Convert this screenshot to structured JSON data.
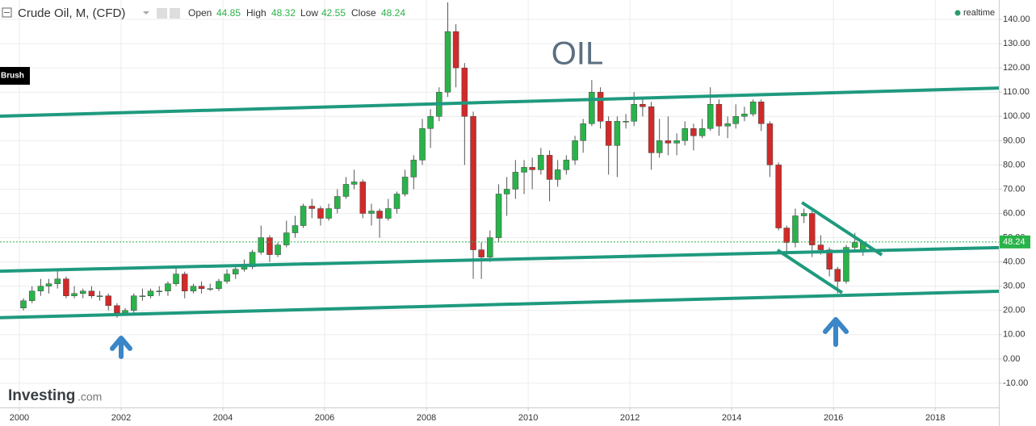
{
  "chart_data": {
    "type": "candlestick",
    "title": "Crude Oil, M, (CFD)",
    "watermark": "OIL",
    "tool_label": "Brush",
    "status": "realtime",
    "logo_main": "Investing",
    "logo_suffix": ".com",
    "ohlc_labels": [
      "Open",
      "High",
      "Low",
      "Close"
    ],
    "up_color": "#2ab34a",
    "down_color": "#d12a2a",
    "grid": true,
    "xlim": [
      1999.62,
      2019.25
    ],
    "xticks": [
      2000,
      2002,
      2004,
      2006,
      2008,
      2010,
      2012,
      2014,
      2016,
      2018
    ],
    "ylim": [
      -20,
      148
    ],
    "yticks": [
      {
        "value": -10,
        "label": "-10.00"
      },
      {
        "value": 0,
        "label": "0.00"
      },
      {
        "value": 10,
        "label": "10.00"
      },
      {
        "value": 20,
        "label": "20.00"
      },
      {
        "value": 30,
        "label": "30.00"
      },
      {
        "value": 40,
        "label": "40.00"
      },
      {
        "value": 50,
        "label": "50.00"
      },
      {
        "value": 60,
        "label": "60.00"
      },
      {
        "value": 70,
        "label": "70.00"
      },
      {
        "value": 80,
        "label": "80.00"
      },
      {
        "value": 90,
        "label": "90.00"
      },
      {
        "value": 100,
        "label": "100.00"
      },
      {
        "value": 110,
        "label": "110.00"
      },
      {
        "value": 120,
        "label": "120.00"
      },
      {
        "value": 130,
        "label": "130.00"
      },
      {
        "value": 140,
        "label": "140.00"
      }
    ],
    "x": [
      2000.08,
      2000.25,
      2000.42,
      2000.58,
      2000.75,
      2000.92,
      2001.08,
      2001.25,
      2001.42,
      2001.58,
      2001.75,
      2001.92,
      2002.08,
      2002.25,
      2002.42,
      2002.58,
      2002.75,
      2002.92,
      2003.08,
      2003.25,
      2003.42,
      2003.58,
      2003.75,
      2003.92,
      2004.08,
      2004.25,
      2004.42,
      2004.58,
      2004.75,
      2004.92,
      2005.08,
      2005.25,
      2005.42,
      2005.58,
      2005.75,
      2005.92,
      2006.08,
      2006.25,
      2006.42,
      2006.58,
      2006.75,
      2006.92,
      2007.08,
      2007.25,
      2007.42,
      2007.58,
      2007.75,
      2007.92,
      2008.08,
      2008.25,
      2008.42,
      2008.58,
      2008.75,
      2008.92,
      2009.08,
      2009.25,
      2009.42,
      2009.58,
      2009.75,
      2009.92,
      2010.08,
      2010.25,
      2010.42,
      2010.58,
      2010.75,
      2010.92,
      2011.08,
      2011.25,
      2011.42,
      2011.58,
      2011.75,
      2011.92,
      2012.08,
      2012.25,
      2012.42,
      2012.58,
      2012.75,
      2012.92,
      2013.08,
      2013.25,
      2013.42,
      2013.58,
      2013.75,
      2013.92,
      2014.08,
      2014.25,
      2014.42,
      2014.58,
      2014.75,
      2014.92,
      2015.08,
      2015.25,
      2015.42,
      2015.58,
      2015.75,
      2015.92,
      2016.08,
      2016.25,
      2016.42,
      2016.58
    ],
    "open": [
      21,
      24,
      28,
      30,
      31,
      33,
      26,
      27,
      28,
      26,
      26,
      22,
      19,
      20,
      26,
      26,
      28,
      28,
      31,
      35,
      28,
      30,
      29,
      29,
      32,
      35,
      37,
      38,
      44,
      50,
      43,
      47,
      52,
      55,
      63,
      62,
      58,
      62,
      67,
      72,
      73,
      60,
      61,
      58,
      62,
      68,
      75,
      82,
      95,
      100,
      110,
      135,
      120,
      100,
      45,
      42,
      50,
      68,
      70,
      77,
      79,
      78,
      84,
      74,
      78,
      82,
      90,
      97,
      110,
      98,
      88,
      98,
      98,
      105,
      104,
      85,
      90,
      89,
      90,
      95,
      92,
      95,
      105,
      96,
      97,
      100,
      101,
      106,
      97,
      80,
      54,
      48,
      59,
      60,
      47,
      45,
      37,
      32,
      46,
      44.85
    ],
    "high": [
      25,
      30,
      33,
      33,
      37,
      34,
      30,
      29,
      30,
      28,
      27,
      23,
      21,
      27,
      29,
      29,
      30,
      32,
      38,
      36,
      31,
      32,
      31,
      33,
      37,
      39,
      41,
      45,
      55,
      51,
      48,
      57,
      59,
      64,
      66,
      63,
      64,
      70,
      75,
      78,
      74,
      64,
      62,
      66,
      69,
      78,
      84,
      99,
      103,
      112,
      147,
      138,
      122,
      102,
      48,
      53,
      72,
      75,
      82,
      82,
      83,
      87,
      86,
      82,
      84,
      92,
      99,
      115,
      112,
      100,
      100,
      101,
      110,
      108,
      106,
      99,
      100,
      93,
      98,
      97,
      99,
      112,
      107,
      100,
      105,
      104,
      107,
      107,
      98,
      81,
      55,
      62,
      62,
      61,
      51,
      46,
      38,
      47,
      52,
      48.32
    ],
    "low": [
      20,
      23,
      26,
      27,
      29,
      25,
      25,
      25,
      25,
      24,
      20,
      17,
      18,
      19,
      24,
      25,
      26,
      26,
      30,
      25,
      27,
      27,
      28,
      28,
      31,
      33,
      36,
      37,
      43,
      40,
      42,
      46,
      50,
      54,
      58,
      55,
      57,
      60,
      66,
      70,
      58,
      55,
      50,
      57,
      60,
      67,
      70,
      80,
      87,
      98,
      108,
      112,
      80,
      33,
      33,
      40,
      48,
      59,
      66,
      68,
      70,
      76,
      65,
      71,
      76,
      80,
      85,
      96,
      95,
      76,
      75,
      95,
      96,
      100,
      78,
      83,
      84,
      84,
      88,
      86,
      91,
      94,
      92,
      91,
      95,
      98,
      100,
      94,
      75,
      53,
      43,
      46,
      56,
      42,
      43,
      34,
      27,
      31,
      45,
      42.55
    ],
    "close": [
      24,
      28,
      30,
      31,
      33,
      26,
      27,
      28,
      26,
      26,
      22,
      19,
      20,
      26,
      26,
      28,
      28,
      31,
      35,
      28,
      30,
      29,
      29,
      32,
      35,
      37,
      38,
      44,
      50,
      43,
      47,
      52,
      55,
      63,
      62,
      58,
      62,
      67,
      72,
      73,
      60,
      61,
      58,
      62,
      68,
      75,
      82,
      95,
      100,
      110,
      135,
      120,
      100,
      45,
      42,
      50,
      68,
      70,
      77,
      79,
      78,
      84,
      74,
      78,
      82,
      90,
      97,
      110,
      98,
      88,
      98,
      98,
      105,
      104,
      85,
      90,
      89,
      90,
      95,
      92,
      95,
      105,
      96,
      97,
      100,
      101,
      106,
      97,
      80,
      54,
      48,
      59,
      60,
      47,
      45,
      37,
      32,
      46,
      48,
      48.24
    ],
    "trendline_color": "#1f9a7e",
    "trendlines": [
      {
        "x": [
          1999.62,
          2019.25
        ],
        "y": [
          100.1,
          111.7
        ]
      },
      {
        "x": [
          1999.62,
          2019.25
        ],
        "y": [
          36.2,
          45.9
        ]
      },
      {
        "x": [
          1999.62,
          2019.25
        ],
        "y": [
          17.0,
          27.9
        ]
      },
      {
        "x": [
          2015.38,
          2016.95
        ],
        "y": [
          64.5,
          42.9
        ]
      },
      {
        "x": [
          2014.9,
          2016.17
        ],
        "y": [
          44.9,
          27.3
        ]
      }
    ]
  }
}
